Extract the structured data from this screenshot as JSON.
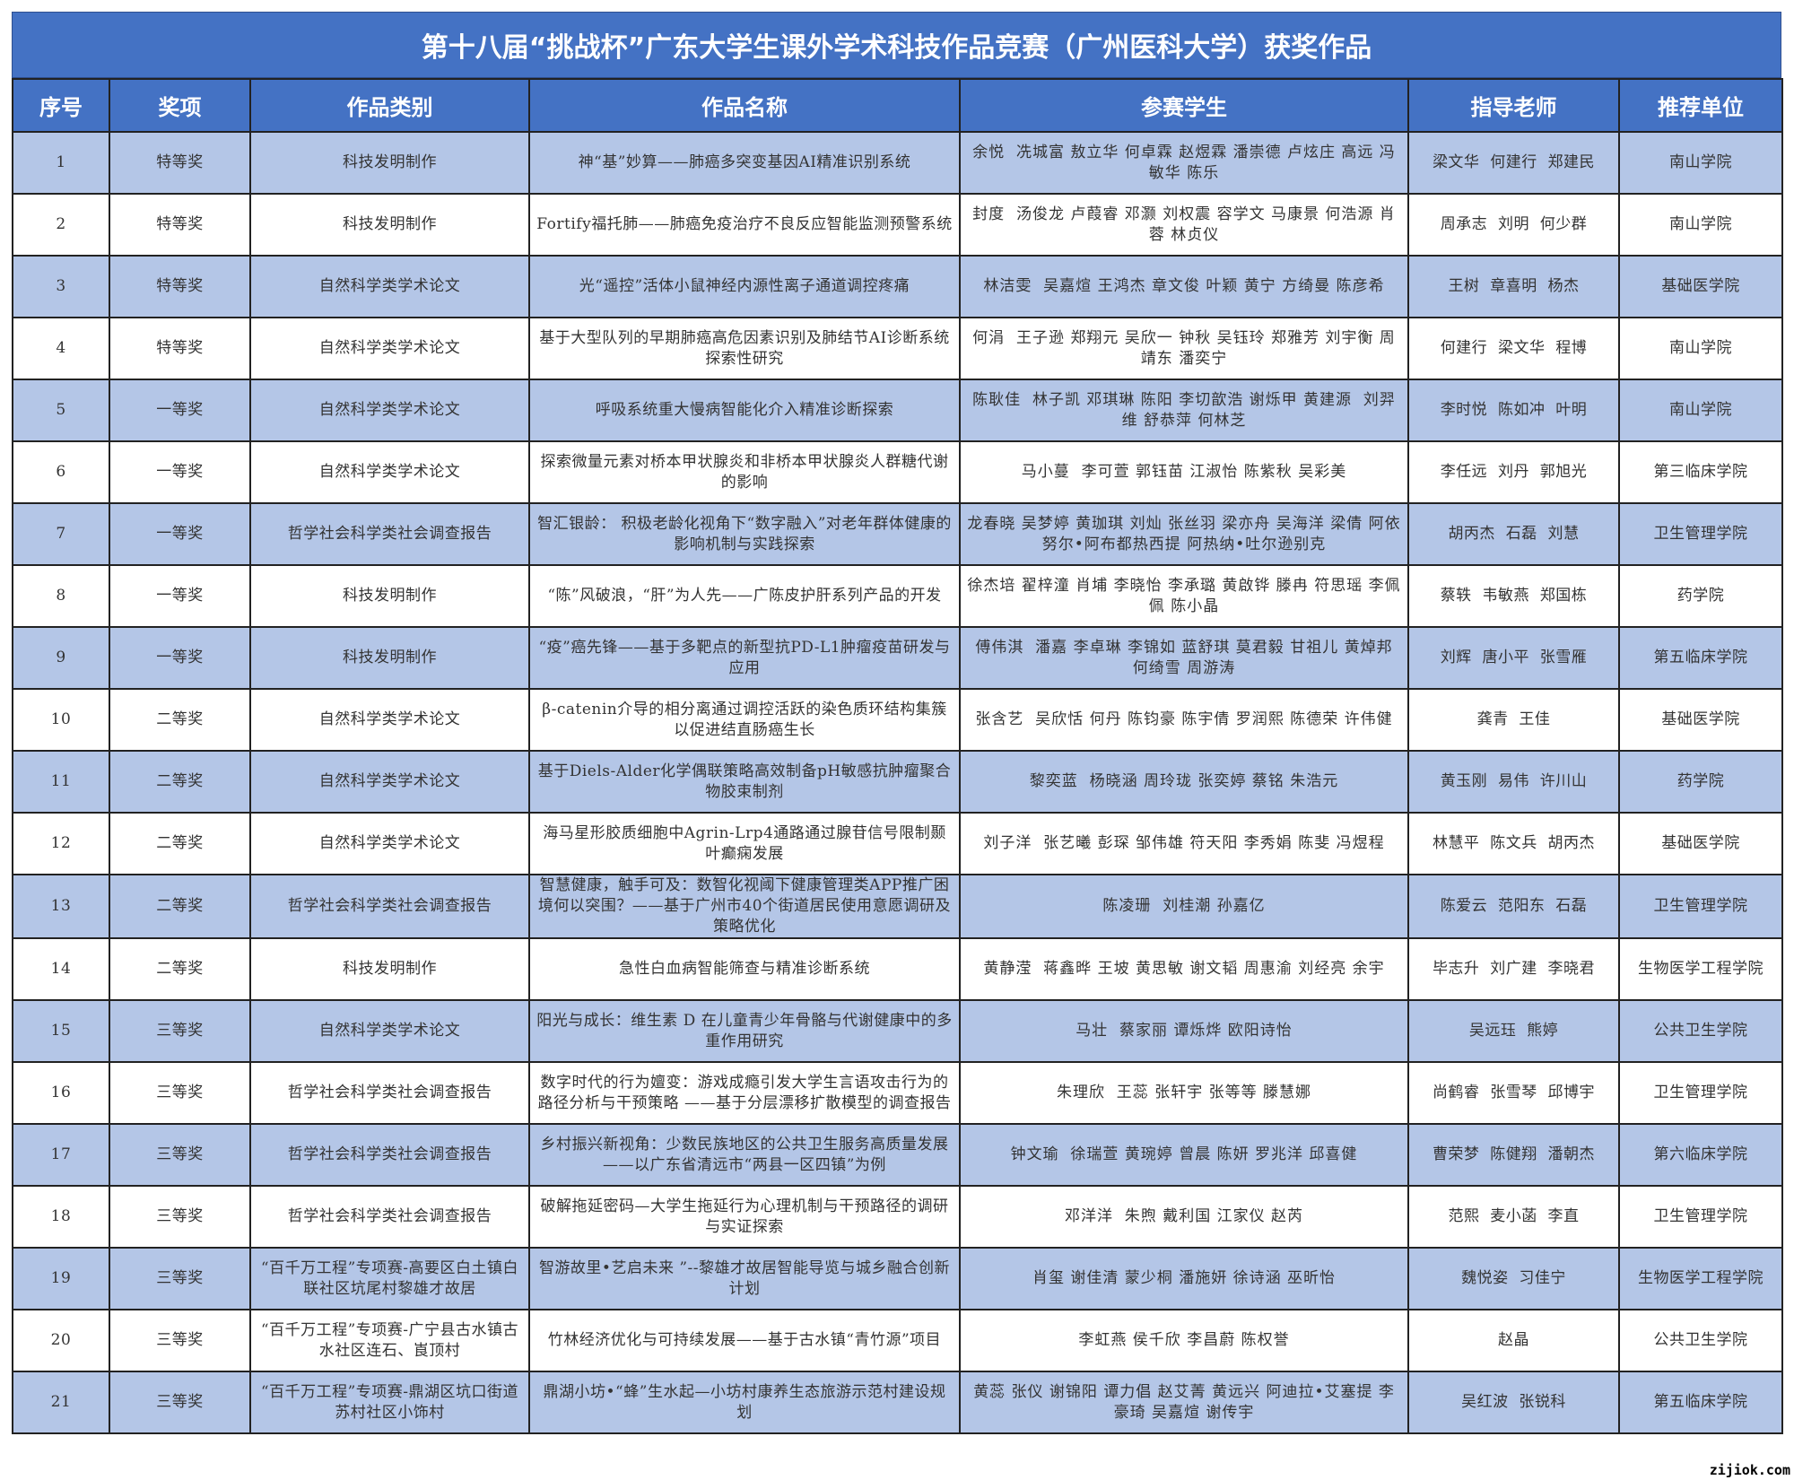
{
  "title": "第十八届“挑战杯”广东大学生课外学术科技作品竞赛（广州医科大学）获奖作品",
  "colors": {
    "header": "#4472C4",
    "band": "#B4C6E7"
  },
  "columns": [
    "序号",
    "奖项",
    "作品类别",
    "作品名称",
    "参赛学生",
    "指导老师",
    "推荐单位"
  ],
  "rows": [
    [
      "1",
      "特等奖",
      "科技发明制作",
      "神“基”妙算——肺癌多突变基因AI精准识别系统",
      "余悦  冼城富 敖立华 何卓霖 赵煜霖 潘崇德 卢炫庄 高远 冯敏华 陈乐",
      "梁文华  何建行  郑建民",
      "南山学院"
    ],
    [
      "2",
      "特等奖",
      "科技发明制作",
      "Fortify福托肺——肺癌免疫治疗不良反应智能监测预警系统",
      "封度  汤俊龙 卢葭睿 邓灏 刘权震 容学文 马康景 何浩源 肖蓉 林贞仪",
      "周承志  刘明  何少群",
      "南山学院"
    ],
    [
      "3",
      "特等奖",
      "自然科学类学术论文",
      "光“遥控”活体小鼠神经内源性离子通道调控疼痛",
      "林洁雯  吴嘉煊 王鸿杰 章文俊 叶颖 黄宁 方绮曼 陈彦希",
      "王树  章喜明  杨杰",
      "基础医学院"
    ],
    [
      "4",
      "特等奖",
      "自然科学类学术论文",
      "基于大型队列的早期肺癌高危因素识别及肺结节AI诊断系统探索性研究",
      "何涓  王子逊 郑翔元 吴欣一 钟秋 吴钰玲 郑雅芳 刘宇衡 周靖东 潘奕宁",
      "何建行  梁文华  程博",
      "南山学院"
    ],
    [
      "5",
      "一等奖",
      "自然科学类学术论文",
      "呼吸系统重大慢病智能化介入精准诊断探索",
      "陈耿佳  林子凯 邓琪琳 陈阳 李切歆浩 谢烁甲 黄建源  刘羿维 舒恭萍 何林芝",
      "李时悦  陈如冲  叶明",
      "南山学院"
    ],
    [
      "6",
      "一等奖",
      "自然科学类学术论文",
      "探索微量元素对桥本甲状腺炎和非桥本甲状腺炎人群糖代谢的影响",
      "马小蔓  李可萱 郭钰苗 江淑怡 陈紫秋 吴彩美",
      "李任远  刘丹  郭旭光",
      "第三临床学院"
    ],
    [
      "7",
      "一等奖",
      "哲学社会科学类社会调查报告",
      "智汇银龄： 积极老龄化视角下“数字融入”对老年群体健康的影响机制与实践探索",
      "龙春晓 吴梦婷 黄珈琪 刘灿 张丝羽 梁亦舟 吴海洋 梁倩 阿依努尔•阿布都热西提 阿热纳•吐尔逊别克",
      "胡丙杰  石磊  刘慧",
      "卫生管理学院"
    ],
    [
      "8",
      "一等奖",
      "科技发明制作",
      "“陈”风破浪，“肝”为人先——广陈皮护肝系列产品的开发",
      "徐杰培 翟梓潼 肖埔 李晓怡 李承璐 黄啟铧 滕冉 符思瑶 李佩佩 陈小晶",
      "蔡轶  韦敏燕  郑国栋",
      "药学院"
    ],
    [
      "9",
      "一等奖",
      "科技发明制作",
      "“疫”癌先锋——基于多靶点的新型抗PD-L1肿瘤疫苗研发与应用",
      "傅伟淇  潘嘉 李卓琳 李锦如 蓝舒琪 莫君毅 甘祖儿 黄焯邦 何绮雪 周游涛",
      "刘辉  唐小平  张雪雁",
      "第五临床学院"
    ],
    [
      "10",
      "二等奖",
      "自然科学类学术论文",
      "β-catenin介导的相分离通过调控活跃的染色质环结构集簇以促进结直肠癌生长",
      "张含艺  吴欣恬 何丹 陈钧豪 陈宇倩 罗润熙 陈德荣 许伟健",
      "龚青  王佳",
      "基础医学院"
    ],
    [
      "11",
      "二等奖",
      "自然科学类学术论文",
      "基于Diels-Alder化学偶联策略高效制备pH敏感抗肿瘤聚合物胶束制剂",
      "黎奕蓝  杨晓涵 周玲珑 张奕婷 蔡铭 朱浩元",
      "黄玉刚  易伟  许川山",
      "药学院"
    ],
    [
      "12",
      "二等奖",
      "自然科学类学术论文",
      "海马星形胶质细胞中Agrin-Lrp4通路通过腺苷信号限制颞叶癫痫发展",
      "刘子洋  张艺曦 彭琛 邹伟雄 符天阳 李秀娟 陈斐 冯煜程",
      "林慧平  陈文兵  胡丙杰",
      "基础医学院"
    ],
    [
      "13",
      "二等奖",
      "哲学社会科学类社会调查报告",
      "智慧健康，触手可及：数智化视阈下健康管理类APP推广困境何以突围？——基于广州市40个街道居民使用意愿调研及策略优化",
      "陈凌珊  刘桂潮 孙嘉亿",
      "陈爱云  范阳东  石磊",
      "卫生管理学院"
    ],
    [
      "14",
      "二等奖",
      "科技发明制作",
      "急性白血病智能筛查与精准诊断系统",
      "黄静滢  蒋鑫晔 王坡 黄思敏 谢文韬 周惠渝 刘经亮 余宇",
      "毕志升  刘广建  李晓君",
      "生物医学工程学院"
    ],
    [
      "15",
      "三等奖",
      "自然科学类学术论文",
      "阳光与成长：维生素 D 在儿童青少年骨骼与代谢健康中的多重作用研究",
      "马壮  蔡家丽 谭烁烨 欧阳诗怡",
      "吴远珏  熊婷",
      "公共卫生学院"
    ],
    [
      "16",
      "三等奖",
      "哲学社会科学类社会调查报告",
      "数字时代的行为嬗变：游戏成瘾引发大学生言语攻击行为的路径分析与干预策略 ——基于分层漂移扩散模型的调查报告",
      "朱理欣  王蕊 张轩宇 张等等 滕慧娜",
      "尚鹤睿  张雪琴  邱博宇",
      "卫生管理学院"
    ],
    [
      "17",
      "三等奖",
      "哲学社会科学类社会调查报告",
      "乡村振兴新视角：少数民族地区的公共卫生服务高质量发展——以广东省清远市“两县一区四镇”为例",
      "钟文瑜  徐瑞萱 黄琬婷 曾晨 陈妍 罗兆洋 邱喜健",
      "曹荣梦  陈健翔  潘朝杰",
      "第六临床学院"
    ],
    [
      "18",
      "三等奖",
      "哲学社会科学类社会调查报告",
      "破解拖延密码—大学生拖延行为心理机制与干预路径的调研与实证探索",
      "邓洋洋  朱煦 戴利国 江家仪 赵芮",
      "范熙  麦小菡  李直",
      "卫生管理学院"
    ],
    [
      "19",
      "三等奖",
      "“百千万工程”专项赛-高要区白土镇白联社区坑尾村黎雄才故居",
      "智游故里•艺启未来 ”--黎雄才故居智能导览与城乡融合创新计划",
      "肖玺 谢佳清 蒙少桐 潘施妍 徐诗涵 巫昕怡",
      "魏悦姿  习佳宁",
      "生物医学工程学院"
    ],
    [
      "20",
      "三等奖",
      "“百千万工程”专项赛-广宁县古水镇古水社区连石、崀顶村",
      "竹林经济优化与可持续发展——基于古水镇“青竹源”项目",
      "李虹燕 侯千欣 李昌蔚 陈权誉",
      "赵晶",
      "公共卫生学院"
    ],
    [
      "21",
      "三等奖",
      "“百千万工程”专项赛-鼎湖区坑口街道苏村社区小饰村",
      "鼎湖小坊•“蜂”生水起—小坊村康养生态旅游示范村建设规划",
      "黄蕊 张仪 谢锦阳 谭力倡 赵艾菁 黄远兴 阿迪拉•艾塞提 李豪琦 吴嘉煊 谢传宇",
      "吴红波  张锐科",
      "第五临床学院"
    ]
  ],
  "watermark": "zijiok.com"
}
